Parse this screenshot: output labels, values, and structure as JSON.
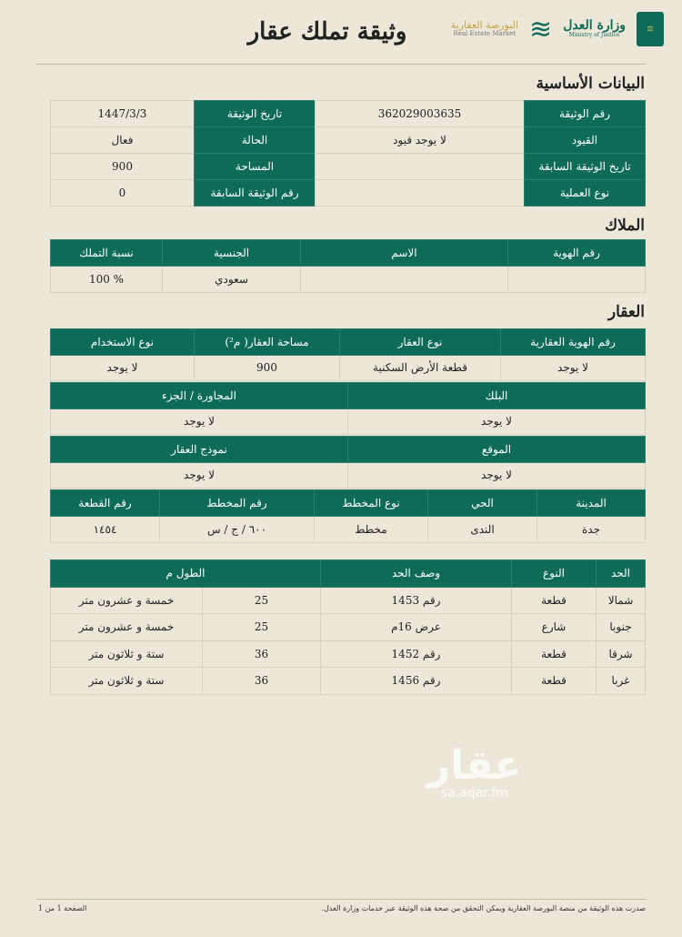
{
  "header": {
    "title": "وثيقة تملك عقار",
    "logos": {
      "moj": "وزارة العدل",
      "moj_en": "Ministry of Justice",
      "market": "البورصة العقارية",
      "market_en": "Real Estate Market"
    }
  },
  "colors": {
    "header_green": "#0e6b57",
    "background": "#ece7d8"
  },
  "basic": {
    "heading": "البيانات الأساسية",
    "rows": [
      [
        "رقم الوثيقة",
        "362029003635",
        "تاريخ الوثيقة",
        "1447/3/3"
      ],
      [
        "القيود",
        "لا يوجد قيود",
        "الحالة",
        "فعال"
      ],
      [
        "تاريخ الوثيقة السابقة",
        "",
        "المساحة",
        "900"
      ],
      [
        "نوع العملية",
        "",
        "رقم الوثيقة السابقة",
        "0"
      ]
    ]
  },
  "owners": {
    "heading": "الملاك",
    "columns": [
      "رقم الهوية",
      "الاسم",
      "الجنسية",
      "نسبة التملك"
    ],
    "rows": [
      [
        "",
        "",
        "سعودي",
        "% 100"
      ]
    ]
  },
  "property": {
    "heading": "العقار",
    "table1": {
      "columns": [
        "رقم الهوية العقارية",
        "نوع العقار",
        "مساحة العقار( م²)",
        "نوع الاستخدام"
      ],
      "rows": [
        [
          "لا يوجد",
          "قطعة الأرض السكنية",
          "900",
          "لا يوجد"
        ]
      ]
    },
    "table2": {
      "columns": [
        "البلك",
        "المجاورة / الجزء"
      ],
      "rows": [
        [
          "لا يوجد",
          "لا يوجد"
        ]
      ]
    },
    "table3": {
      "columns": [
        "الموقع",
        "نموذج العقار"
      ],
      "rows": [
        [
          "لا يوجد",
          "لا يوجد"
        ]
      ]
    },
    "table4": {
      "columns": [
        "المدينة",
        "الحي",
        "نوع المخطط",
        "رقم المخطط",
        "رقم القطعة"
      ],
      "rows": [
        [
          "جدة",
          "الندى",
          "مخطط",
          "٦٠٠ / ج / س",
          "١٤٥٤"
        ]
      ]
    }
  },
  "boundaries": {
    "columns": [
      "الحد",
      "النوع",
      "وصف الحد",
      "الطول م"
    ],
    "rows": [
      [
        "شمالا",
        "قطعة",
        "رقم 1453",
        "25",
        "خمسة و عشرون متر"
      ],
      [
        "جنوبا",
        "شارع",
        "عرض 16م",
        "25",
        "خمسة و عشرون متر"
      ],
      [
        "شرقا",
        "قطعة",
        "رقم 1452",
        "36",
        "ستة و ثلاثون متر"
      ],
      [
        "غربا",
        "قطعة",
        "رقم 1456",
        "36",
        "ستة و ثلاثون متر"
      ]
    ]
  },
  "watermark": {
    "logo": "عقار",
    "site": "sa.aqar.fm"
  },
  "footer": {
    "note": "صدرت هذه الوثيقة من منصة البورصة العقارية ويمكن التحقق من صحة هذه الوثيقة عبر خدمات وزارة العدل.",
    "page": "الصفحة 1 من 1"
  }
}
